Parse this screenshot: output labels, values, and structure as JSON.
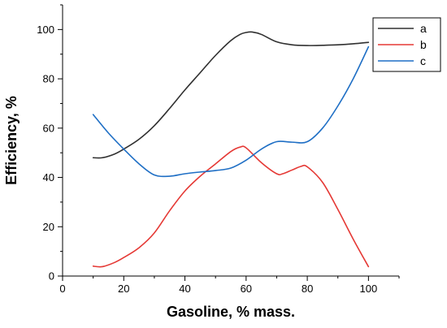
{
  "chart_data": {
    "type": "line",
    "title": "",
    "xlabel": "Gasoline, % mass.",
    "ylabel": "Efficiency, %",
    "xlim": [
      0,
      110
    ],
    "ylim": [
      0,
      110
    ],
    "x_ticks": [
      0,
      20,
      40,
      60,
      80,
      100
    ],
    "y_ticks": [
      0,
      20,
      40,
      60,
      80,
      100
    ],
    "grid": false,
    "legend_position": "top-right",
    "series": [
      {
        "name": "a",
        "color": "#303030",
        "x": [
          10,
          13,
          17,
          20,
          25,
          30,
          35,
          40,
          45,
          50,
          55,
          58,
          60,
          62,
          65,
          70,
          75,
          80,
          85,
          90,
          95,
          100
        ],
        "y": [
          48,
          48,
          49.5,
          51.5,
          55.5,
          61,
          68,
          75.5,
          82.5,
          89.5,
          95.5,
          98,
          98.8,
          99,
          98,
          95,
          93.8,
          93.5,
          93.6,
          93.8,
          94.2,
          94.8
        ]
      },
      {
        "name": "b",
        "color": "#e53935",
        "x": [
          10,
          13,
          17,
          20,
          25,
          30,
          35,
          40,
          45,
          50,
          55,
          58,
          60,
          65,
          70,
          72,
          75,
          78,
          80,
          85,
          90,
          95,
          100
        ],
        "y": [
          4,
          3.8,
          5.5,
          7.5,
          11.5,
          17.5,
          26.5,
          34.5,
          40.5,
          45.5,
          50.5,
          52.3,
          52,
          46,
          41.5,
          41.5,
          43,
          44.5,
          44.3,
          38,
          27,
          15,
          3.8
        ]
      },
      {
        "name": "c",
        "color": "#1f6fc5",
        "x": [
          10,
          15,
          20,
          25,
          30,
          35,
          40,
          45,
          50,
          55,
          60,
          65,
          70,
          75,
          80,
          85,
          90,
          95,
          100
        ],
        "y": [
          65.5,
          58,
          51.5,
          45.5,
          41,
          40.5,
          41.5,
          42.2,
          42.8,
          43.8,
          47,
          51.5,
          54.5,
          54.3,
          54.5,
          60,
          69,
          80,
          93
        ]
      }
    ]
  }
}
